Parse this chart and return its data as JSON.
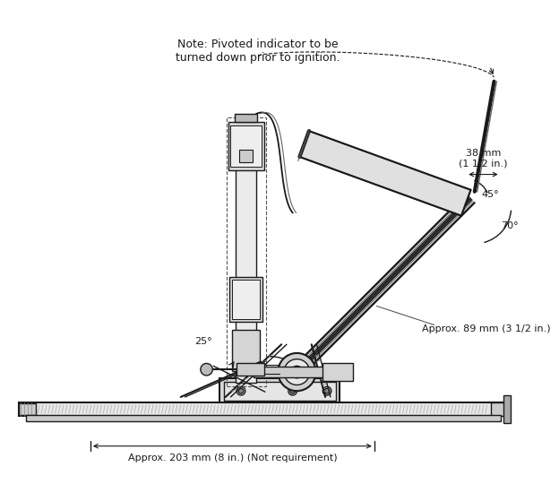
{
  "background_color": "#ffffff",
  "line_color": "#1a1a1a",
  "note_text": "Note: Pivoted indicator to be\nturned down prior to ignition.",
  "dim_38mm": "38 mm\n(1 1/2 in.)",
  "dim_89mm": "Approx. 89 mm (3 1/2 in.)",
  "dim_203mm": "Approx. 203 mm (8 in.) (Not requirement)",
  "angle_45": "45°",
  "angle_70": "70°",
  "angle_25": "25°",
  "figsize": [
    6.24,
    5.4
  ],
  "dpi": 100
}
